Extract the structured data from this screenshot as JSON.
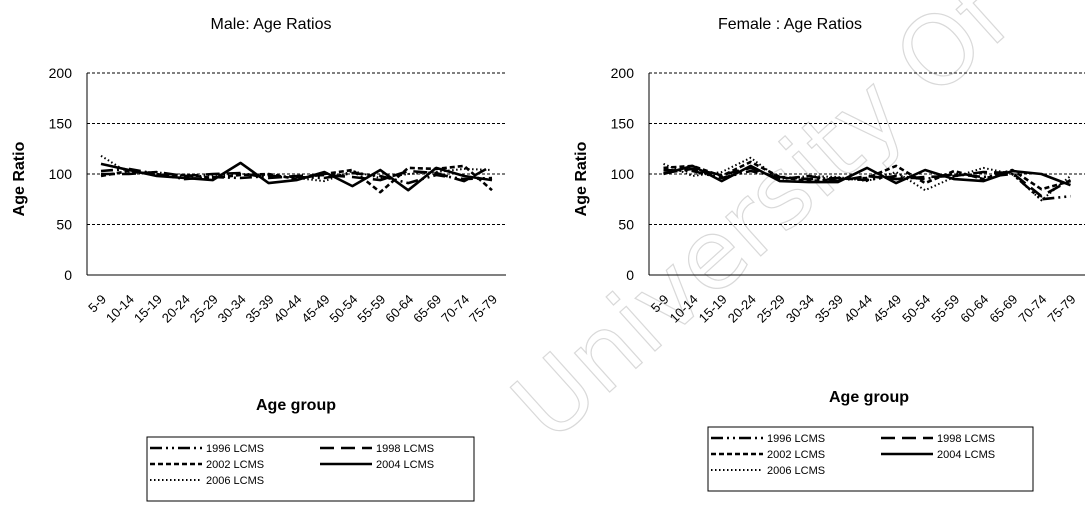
{
  "watermark": "University Of Cape Town",
  "chart_data": [
    {
      "type": "line",
      "title": "Male: Age Ratios",
      "xlabel": "Age group",
      "ylabel": "Age Ratio",
      "ylim": [
        0,
        200
      ],
      "yticks": [
        0,
        50,
        100,
        150,
        200
      ],
      "grid": "horizontal dashed",
      "legend_position": "bottom",
      "categories": [
        "5-9",
        "10-14",
        "15-19",
        "20-24",
        "25-29",
        "30-34",
        "35-39",
        "40-44",
        "45-49",
        "50-54",
        "55-59",
        "60-64",
        "65-69",
        "70-74",
        "75-79"
      ],
      "series": [
        {
          "name": "1996 LCMS",
          "values": [
            103,
            105,
            100,
            95,
            97,
            96,
            98,
            97,
            96,
            101,
            98,
            91,
            99,
            95,
            96
          ]
        },
        {
          "name": "1998 LCMS",
          "values": [
            100,
            100,
            102,
            98,
            100,
            101,
            96,
            98,
            99,
            97,
            94,
            103,
            101,
            93,
            108
          ]
        },
        {
          "name": "2002 LCMS",
          "values": [
            98,
            103,
            99,
            99,
            96,
            99,
            100,
            95,
            100,
            104,
            82,
            106,
            105,
            108,
            84
          ]
        },
        {
          "name": "2004 LCMS",
          "values": [
            110,
            104,
            98,
            96,
            94,
            111,
            91,
            94,
            102,
            88,
            104,
            84,
            106,
            98,
            94
          ]
        },
        {
          "name": "2006 LCMS",
          "values": [
            118,
            101,
            102,
            97,
            99,
            100,
            99,
            96,
            93,
            103,
            96,
            100,
            102,
            105,
            104
          ]
        }
      ]
    },
    {
      "type": "line",
      "title": "Female : Age Ratios",
      "xlabel": "Age group",
      "ylabel": "Age Ratio",
      "ylim": [
        0,
        200
      ],
      "yticks": [
        0,
        50,
        100,
        150,
        200
      ],
      "grid": "horizontal dashed",
      "legend_position": "bottom",
      "categories": [
        "5-9",
        "10-14",
        "15-19",
        "20-24",
        "25-29",
        "30-34",
        "35-39",
        "40-44",
        "45-49",
        "50-54",
        "55-59",
        "60-64",
        "65-69",
        "70-74",
        "75-79"
      ],
      "series": [
        {
          "name": "1996 LCMS",
          "values": [
            104,
            103,
            96,
            103,
            97,
            95,
            96,
            94,
            98,
            95,
            100,
            97,
            100,
            75,
            78
          ]
        },
        {
          "name": "1998 LCMS",
          "values": [
            101,
            105,
            99,
            106,
            95,
            98,
            93,
            98,
            95,
            97,
            98,
            102,
            101,
            78,
            94
          ]
        },
        {
          "name": "2002 LCMS",
          "values": [
            106,
            108,
            98,
            112,
            97,
            93,
            95,
            96,
            108,
            91,
            103,
            95,
            104,
            85,
            93
          ]
        },
        {
          "name": "2004 LCMS",
          "values": [
            100,
            108,
            93,
            108,
            93,
            92,
            92,
            106,
            91,
            104,
            95,
            93,
            103,
            100,
            89
          ]
        },
        {
          "name": "2006 LCMS",
          "values": [
            110,
            98,
            102,
            116,
            95,
            98,
            97,
            93,
            102,
            84,
            97,
            106,
            100,
            74,
            98
          ]
        }
      ]
    }
  ],
  "styles": {
    "1996 LCMS": "dash-dot-dot",
    "1998 LCMS": "long-dash",
    "2002 LCMS": "short-dash",
    "2004 LCMS": "solid",
    "2006 LCMS": "dotted"
  },
  "line_color": "#000000",
  "grid_color": "#000000"
}
